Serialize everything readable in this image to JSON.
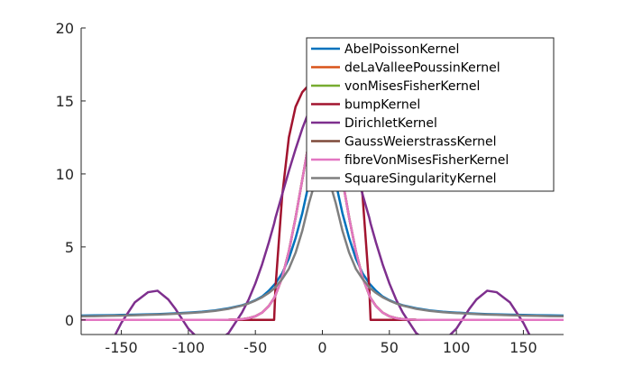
{
  "chart_data": {
    "type": "line",
    "title": "",
    "xlabel": "",
    "ylabel": "",
    "xlim": [
      -180,
      180
    ],
    "ylim": [
      -1,
      20
    ],
    "xticks": [
      "-150",
      "-100",
      "-50",
      "0",
      "50",
      "100",
      "150"
    ],
    "yticks": [
      "0",
      "5",
      "10",
      "15",
      "20"
    ],
    "grid": false,
    "legend_position": "top-right",
    "x": [
      -180,
      -170,
      -160,
      -150,
      -140,
      -130,
      -123,
      -115,
      -110,
      -100,
      -90,
      -80,
      -70,
      -60,
      -55,
      -50,
      -45,
      -40,
      -36,
      -35,
      -30,
      -25,
      -20,
      -15,
      -10,
      -5,
      0,
      5,
      10,
      15,
      20,
      25,
      30,
      35,
      36,
      40,
      45,
      50,
      55,
      60,
      70,
      80,
      90,
      100,
      110,
      115,
      123,
      130,
      140,
      150,
      160,
      170,
      180
    ],
    "series": [
      {
        "name": "AbelPoissonKernel",
        "color": "#0072BD",
        "values": [
          0.3,
          0.31,
          0.32,
          0.34,
          0.36,
          0.38,
          0.4,
          0.43,
          0.45,
          0.5,
          0.56,
          0.65,
          0.8,
          1.0,
          1.15,
          1.35,
          1.6,
          2.0,
          2.4,
          2.5,
          3.2,
          4.2,
          5.6,
          7.3,
          9.4,
          11.4,
          12.2,
          11.4,
          9.4,
          7.3,
          5.6,
          4.2,
          3.2,
          2.5,
          2.4,
          2.0,
          1.6,
          1.35,
          1.15,
          1.0,
          0.8,
          0.65,
          0.56,
          0.5,
          0.45,
          0.43,
          0.4,
          0.38,
          0.36,
          0.34,
          0.32,
          0.31,
          0.3
        ]
      },
      {
        "name": "deLaValleePoussinKernel",
        "color": "#D95319",
        "values": [
          0,
          0,
          0,
          0,
          0,
          0,
          0,
          0,
          0,
          0,
          0,
          0,
          0.01,
          0.05,
          0.12,
          0.25,
          0.5,
          0.95,
          1.5,
          1.7,
          2.9,
          4.7,
          7.0,
          9.6,
          12.2,
          14.2,
          15.0,
          14.2,
          12.2,
          9.6,
          7.0,
          4.7,
          2.9,
          1.7,
          1.5,
          0.95,
          0.5,
          0.25,
          0.12,
          0.05,
          0.01,
          0,
          0,
          0,
          0,
          0,
          0,
          0,
          0,
          0,
          0,
          0,
          0
        ]
      },
      {
        "name": "vonMisesFisherKernel",
        "color": "#77AC30",
        "values": [
          0,
          0,
          0,
          0,
          0,
          0,
          0,
          0,
          0,
          0,
          0,
          0,
          0.01,
          0.05,
          0.12,
          0.25,
          0.5,
          0.95,
          1.5,
          1.7,
          2.9,
          4.7,
          7.0,
          9.6,
          12.2,
          14.2,
          15.0,
          14.2,
          12.2,
          9.6,
          7.0,
          4.7,
          2.9,
          1.7,
          1.5,
          0.95,
          0.5,
          0.25,
          0.12,
          0.05,
          0.01,
          0,
          0,
          0,
          0,
          0,
          0,
          0,
          0,
          0,
          0,
          0,
          0
        ]
      },
      {
        "name": "bumpKernel",
        "color": "#A2142F",
        "values": [
          0,
          0,
          0,
          0,
          0,
          0,
          0,
          0,
          0,
          0,
          0,
          0,
          0,
          0,
          0,
          0,
          0,
          0,
          0,
          2.2,
          8.5,
          12.5,
          14.6,
          15.6,
          16.1,
          16.3,
          16.35,
          16.3,
          16.1,
          15.6,
          14.6,
          12.5,
          8.5,
          2.2,
          0,
          0,
          0,
          0,
          0,
          0,
          0,
          0,
          0,
          0,
          0,
          0,
          0,
          0,
          0,
          0,
          0,
          0,
          0
        ]
      },
      {
        "name": "DirichletKernel",
        "color": "#7E2F8E",
        "values": [
          -3.5,
          -3.5,
          -2.0,
          -0.2,
          1.2,
          1.9,
          2.0,
          1.4,
          0.8,
          -0.6,
          -1.5,
          -1.6,
          -0.9,
          0.5,
          1.4,
          2.5,
          3.8,
          5.3,
          6.6,
          7.0,
          8.6,
          10.2,
          11.7,
          13.1,
          14.3,
          15.2,
          15.5,
          15.2,
          14.3,
          13.1,
          11.7,
          10.2,
          8.6,
          7.0,
          6.6,
          5.3,
          3.8,
          2.5,
          1.4,
          0.5,
          -0.9,
          -1.6,
          -1.5,
          -0.6,
          0.8,
          1.4,
          2.0,
          1.9,
          1.2,
          -0.2,
          -2.0,
          -3.5,
          -3.5
        ]
      },
      {
        "name": "GaussWeierstrassKernel",
        "color": "#7E4A3A",
        "values": [
          0,
          0,
          0,
          0,
          0,
          0,
          0,
          0,
          0,
          0,
          0,
          0,
          0.01,
          0.05,
          0.12,
          0.25,
          0.5,
          0.95,
          1.5,
          1.7,
          2.9,
          4.7,
          7.0,
          9.6,
          12.2,
          14.2,
          15.0,
          14.2,
          12.2,
          9.6,
          7.0,
          4.7,
          2.9,
          1.7,
          1.5,
          0.95,
          0.5,
          0.25,
          0.12,
          0.05,
          0.01,
          0,
          0,
          0,
          0,
          0,
          0,
          0,
          0,
          0,
          0,
          0,
          0
        ]
      },
      {
        "name": "fibreVonMisesFisherKernel",
        "color": "#E377C2",
        "values": [
          0,
          0,
          0,
          0,
          0,
          0,
          0,
          0,
          0,
          0,
          0,
          0,
          0.01,
          0.05,
          0.12,
          0.25,
          0.5,
          0.95,
          1.5,
          1.7,
          2.9,
          4.7,
          7.0,
          9.6,
          12.2,
          14.2,
          15.0,
          14.2,
          12.2,
          9.6,
          7.0,
          4.7,
          2.9,
          1.7,
          1.5,
          0.95,
          0.5,
          0.25,
          0.12,
          0.05,
          0.01,
          0,
          0,
          0,
          0,
          0,
          0,
          0,
          0,
          0,
          0,
          0,
          0
        ]
      },
      {
        "name": "SquareSingularityKernel",
        "color": "#7F7F7F",
        "values": [
          0.25,
          0.26,
          0.28,
          0.3,
          0.32,
          0.35,
          0.37,
          0.4,
          0.42,
          0.47,
          0.53,
          0.62,
          0.76,
          0.98,
          1.13,
          1.32,
          1.55,
          1.85,
          2.15,
          2.25,
          2.8,
          3.5,
          4.6,
          6.1,
          8.0,
          9.6,
          10.3,
          9.6,
          8.0,
          6.1,
          4.6,
          3.5,
          2.8,
          2.25,
          2.15,
          1.85,
          1.55,
          1.32,
          1.13,
          0.98,
          0.76,
          0.62,
          0.53,
          0.47,
          0.42,
          0.4,
          0.37,
          0.35,
          0.32,
          0.3,
          0.28,
          0.26,
          0.25
        ]
      }
    ]
  }
}
